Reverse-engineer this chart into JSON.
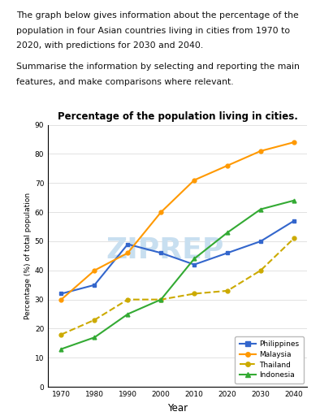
{
  "title": "Percentage of the population living in cities.",
  "ylabel": "Percentage (%) of total population",
  "xlabel": "Year",
  "years": [
    1970,
    1980,
    1990,
    2000,
    2010,
    2020,
    2030,
    2040
  ],
  "philippines": [
    32,
    35,
    49,
    46,
    42,
    46,
    50,
    57
  ],
  "malaysia": [
    30,
    40,
    46,
    60,
    71,
    76,
    81,
    84
  ],
  "thailand": [
    18,
    23,
    30,
    30,
    32,
    33,
    40,
    51
  ],
  "indonesia": [
    13,
    17,
    25,
    30,
    44,
    53,
    61,
    64
  ],
  "philippines_color": "#3366cc",
  "malaysia_color": "#ff9900",
  "thailand_color": "#ccaa00",
  "indonesia_color": "#33aa33",
  "ylim": [
    0,
    90
  ],
  "yticks": [
    0,
    10,
    20,
    30,
    40,
    50,
    60,
    70,
    80,
    90
  ],
  "text_para1": "The graph below gives information about the percentage of the population in four Asian countries living in cities from 1970 to 2020, with predictions for 2030 and 2040.",
  "text_para2": "Summarise the information by selecting and reporting the main features, and make comparisons where relevant.",
  "bg_color": "#ffffff",
  "watermark_text": "ZIPREP",
  "watermark_color": "#c8dff0"
}
